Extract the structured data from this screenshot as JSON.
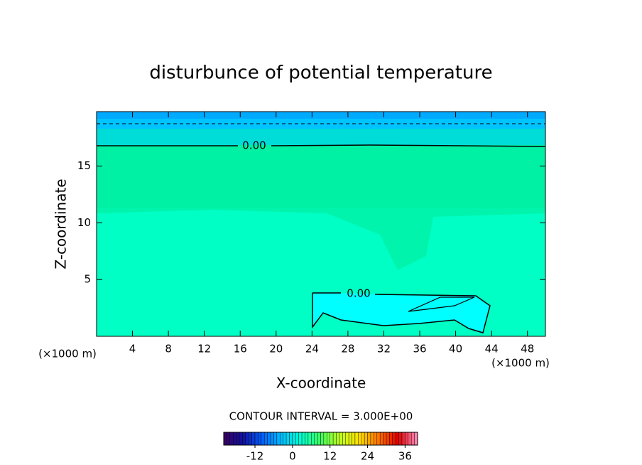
{
  "chart_data": {
    "type": "contour",
    "title": "disturbunce of potential temperature",
    "xlabel": "X-coordinate",
    "ylabel": "Z-coordinate",
    "x_unit_label": "(×1000 m)",
    "xlim": [
      0,
      50
    ],
    "xticks": [
      4,
      8,
      12,
      16,
      20,
      24,
      28,
      32,
      36,
      40,
      44,
      48
    ],
    "ylim": [
      0,
      19.8
    ],
    "yticks": [
      5,
      10,
      15
    ],
    "contour_labels": [
      "0.00",
      "0.00"
    ],
    "contour_interval_label": "CONTOUR INTERVAL = 3.000E+00",
    "colorbar": {
      "lim": [
        -22,
        40
      ],
      "ticks": [
        -12,
        0,
        12,
        24,
        36
      ],
      "colors": [
        "#3a0060",
        "#1010a0",
        "#0060ff",
        "#00c0ff",
        "#00ffd0",
        "#40ff60",
        "#c0ff20",
        "#ffe000",
        "#ff7000",
        "#e00000",
        "#ff90c0"
      ]
    }
  }
}
